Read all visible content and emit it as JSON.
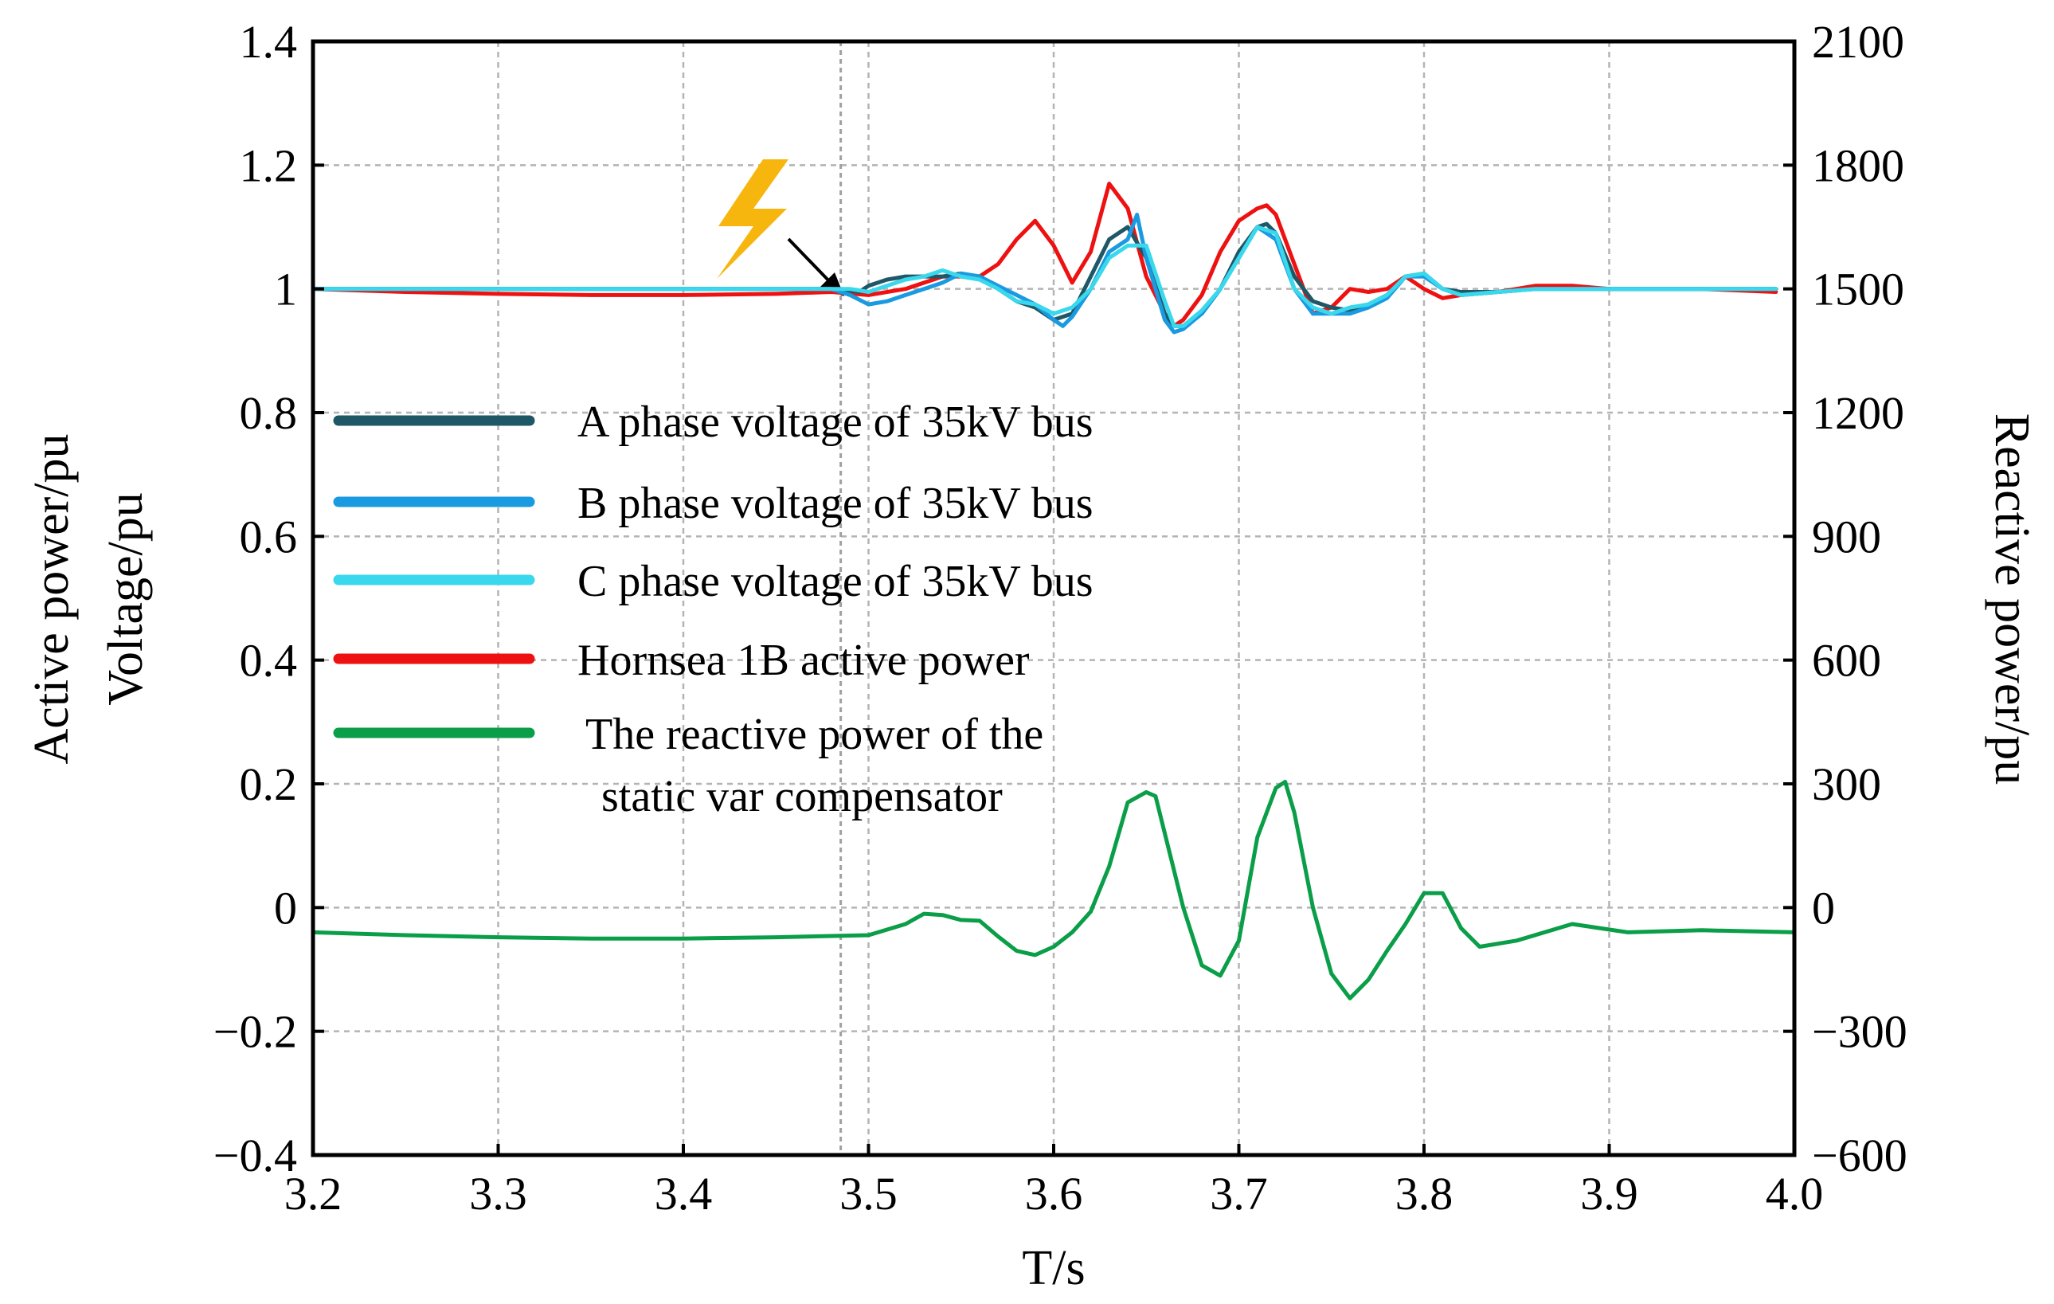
{
  "chart_data": {
    "type": "line",
    "xlabel": "T/s",
    "ylabel_left": [
      "Active power/pu",
      "Voltage/pu"
    ],
    "ylabel_right": "Reactive power/pu",
    "xlim": [
      3.2,
      4.0
    ],
    "ylim_left": [
      -0.4,
      1.4
    ],
    "ylim_right": [
      -600,
      2100
    ],
    "x_ticks": [
      "3.2",
      "3.3",
      "3.4",
      "3.5",
      "3.6",
      "3.7",
      "3.8",
      "3.9",
      "4.0"
    ],
    "y_left_ticks": [
      "1.4",
      "1.2",
      "1",
      "0.8",
      "0.6",
      "0.4",
      "0.2",
      "0",
      "−0.2",
      "−0.4"
    ],
    "y_right_ticks": [
      "2100",
      "1800",
      "1500",
      "1200",
      "900",
      "600",
      "300",
      "0",
      "−300",
      "−600"
    ],
    "grid": true,
    "fault_time": 3.485,
    "fault_icon": "lightning-bolt-icon",
    "legend_position": "center-left",
    "series": [
      {
        "name": "A phase voltage of 35kV bus",
        "color": "#1f5766",
        "axis": "left",
        "x": [
          3.2,
          3.3,
          3.4,
          3.48,
          3.495,
          3.5,
          3.51,
          3.52,
          3.53,
          3.54,
          3.55,
          3.56,
          3.57,
          3.58,
          3.59,
          3.6,
          3.61,
          3.62,
          3.63,
          3.64,
          3.65,
          3.66,
          3.665,
          3.67,
          3.68,
          3.69,
          3.7,
          3.71,
          3.715,
          3.72,
          3.73,
          3.74,
          3.75,
          3.76,
          3.77,
          3.78,
          3.79,
          3.8,
          3.81,
          3.82,
          3.84,
          3.86,
          3.88,
          3.9,
          3.95,
          3.99
        ],
        "y": [
          1.0,
          1.0,
          1.0,
          1.0,
          0.995,
          1.005,
          1.015,
          1.02,
          1.02,
          1.02,
          1.025,
          1.02,
          1.0,
          0.98,
          0.97,
          0.95,
          0.96,
          1.02,
          1.08,
          1.1,
          1.05,
          0.96,
          0.94,
          0.94,
          0.96,
          1.0,
          1.06,
          1.1,
          1.105,
          1.09,
          1.02,
          0.98,
          0.97,
          0.965,
          0.975,
          0.99,
          1.02,
          1.025,
          1.0,
          0.995,
          0.995,
          1.0,
          1.0,
          1.0,
          1.0,
          1.0
        ]
      },
      {
        "name": "B phase voltage of 35kV bus",
        "color": "#1a9ae0",
        "axis": "left",
        "x": [
          3.2,
          3.3,
          3.4,
          3.48,
          3.49,
          3.5,
          3.51,
          3.52,
          3.53,
          3.54,
          3.55,
          3.56,
          3.57,
          3.58,
          3.59,
          3.6,
          3.605,
          3.61,
          3.62,
          3.63,
          3.64,
          3.645,
          3.65,
          3.66,
          3.665,
          3.67,
          3.68,
          3.69,
          3.7,
          3.71,
          3.72,
          3.73,
          3.74,
          3.75,
          3.76,
          3.77,
          3.78,
          3.79,
          3.8,
          3.81,
          3.82,
          3.84,
          3.86,
          3.88,
          3.9,
          3.95,
          3.99
        ],
        "y": [
          1.0,
          1.0,
          1.0,
          1.0,
          0.99,
          0.975,
          0.98,
          0.99,
          1.0,
          1.01,
          1.025,
          1.02,
          1.005,
          0.99,
          0.975,
          0.95,
          0.94,
          0.955,
          1.0,
          1.06,
          1.08,
          1.12,
          1.05,
          0.95,
          0.93,
          0.935,
          0.96,
          1.0,
          1.05,
          1.1,
          1.08,
          1.0,
          0.96,
          0.96,
          0.96,
          0.97,
          0.985,
          1.02,
          1.02,
          1.0,
          0.99,
          0.995,
          1.0,
          1.0,
          1.0,
          1.0,
          1.0
        ]
      },
      {
        "name": "C phase voltage of 35kV bus",
        "color": "#3ad8ec",
        "axis": "left",
        "x": [
          3.2,
          3.3,
          3.4,
          3.48,
          3.49,
          3.5,
          3.51,
          3.52,
          3.53,
          3.54,
          3.55,
          3.56,
          3.57,
          3.58,
          3.59,
          3.6,
          3.61,
          3.62,
          3.63,
          3.64,
          3.65,
          3.66,
          3.665,
          3.67,
          3.68,
          3.69,
          3.7,
          3.71,
          3.72,
          3.73,
          3.74,
          3.75,
          3.76,
          3.77,
          3.78,
          3.79,
          3.8,
          3.81,
          3.82,
          3.84,
          3.86,
          3.88,
          3.9,
          3.95,
          3.99
        ],
        "y": [
          1.0,
          1.0,
          1.0,
          1.0,
          1.0,
          0.995,
          1.005,
          1.015,
          1.02,
          1.03,
          1.02,
          1.015,
          1.0,
          0.98,
          0.975,
          0.96,
          0.97,
          1.0,
          1.05,
          1.07,
          1.07,
          0.98,
          0.94,
          0.94,
          0.965,
          1.0,
          1.05,
          1.1,
          1.09,
          1.0,
          0.97,
          0.96,
          0.97,
          0.975,
          0.99,
          1.02,
          1.025,
          1.0,
          0.99,
          0.995,
          1.0,
          1.0,
          1.0,
          1.0,
          1.0
        ]
      },
      {
        "name": "Hornsea 1B active power",
        "color": "#ee1111",
        "axis": "left",
        "x": [
          3.2,
          3.25,
          3.3,
          3.35,
          3.4,
          3.45,
          3.48,
          3.5,
          3.52,
          3.54,
          3.56,
          3.57,
          3.58,
          3.59,
          3.6,
          3.61,
          3.62,
          3.63,
          3.64,
          3.65,
          3.66,
          3.665,
          3.67,
          3.68,
          3.69,
          3.7,
          3.71,
          3.715,
          3.72,
          3.73,
          3.74,
          3.75,
          3.76,
          3.77,
          3.78,
          3.79,
          3.8,
          3.81,
          3.82,
          3.84,
          3.86,
          3.88,
          3.9,
          3.95,
          3.99
        ],
        "y": [
          1.0,
          0.995,
          0.992,
          0.99,
          0.99,
          0.992,
          0.995,
          0.99,
          1.0,
          1.02,
          1.02,
          1.04,
          1.08,
          1.11,
          1.07,
          1.01,
          1.06,
          1.17,
          1.13,
          1.02,
          0.96,
          0.94,
          0.95,
          0.99,
          1.06,
          1.11,
          1.13,
          1.135,
          1.12,
          1.04,
          0.96,
          0.97,
          1.0,
          0.995,
          1.0,
          1.02,
          1.0,
          0.985,
          0.99,
          0.995,
          1.005,
          1.005,
          1.0,
          1.0,
          0.995
        ]
      },
      {
        "name": "The reactive power of the static var compensator",
        "color": "#0a9e48",
        "axis": "right",
        "x": [
          3.2,
          3.25,
          3.3,
          3.35,
          3.4,
          3.45,
          3.5,
          3.52,
          3.53,
          3.54,
          3.55,
          3.56,
          3.57,
          3.58,
          3.59,
          3.6,
          3.61,
          3.62,
          3.63,
          3.64,
          3.65,
          3.655,
          3.66,
          3.67,
          3.68,
          3.69,
          3.7,
          3.71,
          3.72,
          3.725,
          3.73,
          3.74,
          3.75,
          3.76,
          3.77,
          3.78,
          3.79,
          3.8,
          3.81,
          3.82,
          3.83,
          3.85,
          3.88,
          3.91,
          3.95,
          4.0
        ],
        "y": [
          -60,
          -67,
          -72,
          -75,
          -75,
          -72,
          -67,
          -40,
          -15,
          -18,
          -30,
          -32,
          -70,
          -105,
          -115,
          -95,
          -60,
          -10,
          100,
          255,
          280,
          270,
          180,
          0,
          -140,
          -165,
          -80,
          170,
          290,
          305,
          230,
          0,
          -160,
          -220,
          -175,
          -105,
          -40,
          35,
          35,
          -50,
          -95,
          -80,
          -40,
          -60,
          -55,
          -60
        ]
      }
    ]
  }
}
